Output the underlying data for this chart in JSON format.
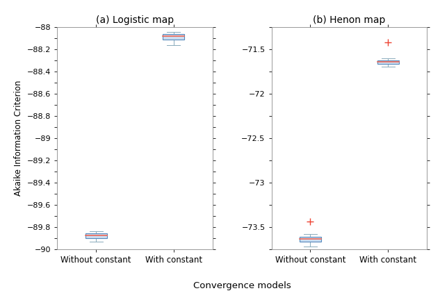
{
  "title_left": "(a) Logistic map",
  "title_right": "(b) Henon map",
  "xlabel": "Convergence models",
  "ylabel": "Akaike Information Criterion",
  "xtick_labels": [
    "Without constant",
    "With constant"
  ],
  "logistic": {
    "without_constant": {
      "whisker_low": -89.935,
      "q1": -89.905,
      "median": -89.88,
      "q3": -89.86,
      "whisker_high": -89.84,
      "outliers": []
    },
    "with_constant": {
      "whisker_low": -88.165,
      "q1": -88.115,
      "median": -88.085,
      "q3": -88.065,
      "whisker_high": -88.045,
      "outliers": []
    },
    "ylim": [
      -90.0,
      -88.0
    ],
    "yticks": [
      -90.0,
      -89.8,
      -89.6,
      -89.4,
      -89.2,
      -89.0,
      -88.8,
      -88.6,
      -88.4,
      -88.2,
      -88.0
    ]
  },
  "henon": {
    "without_constant": {
      "whisker_low": -73.72,
      "q1": -73.665,
      "median": -73.635,
      "q3": -73.615,
      "whisker_high": -73.585,
      "outliers": [
        -73.44
      ]
    },
    "with_constant": {
      "whisker_low": -71.695,
      "q1": -71.665,
      "median": -71.645,
      "q3": -71.625,
      "whisker_high": -71.605,
      "outliers": [
        -71.42
      ]
    },
    "ylim": [
      -73.75,
      -71.25
    ],
    "yticks": [
      -73.5,
      -73.0,
      -72.5,
      -72.0,
      -71.5
    ]
  },
  "box_facecolor": "#ccddf0",
  "box_edgecolor": "#5588bb",
  "median_color": "#ee6655",
  "whisker_color": "#88aabb",
  "outlier_color": "#ee4433",
  "box_width": 0.28,
  "positions": [
    1,
    2
  ],
  "figsize": [
    6.33,
    4.32
  ],
  "dpi": 100
}
